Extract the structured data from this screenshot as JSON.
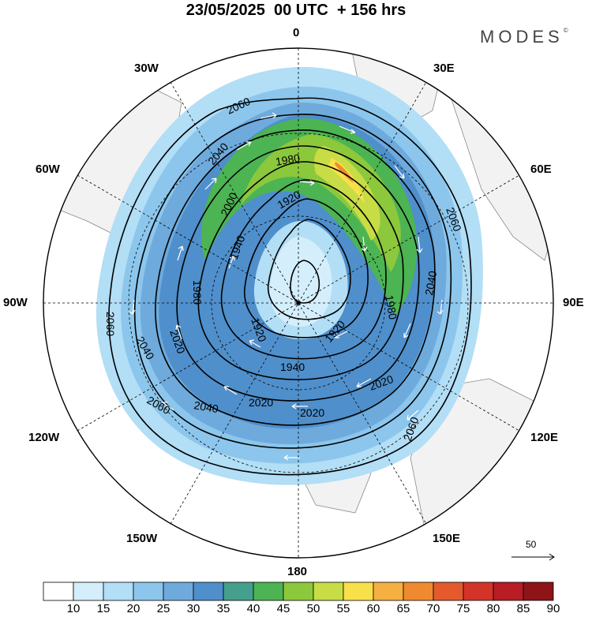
{
  "title": "23/05/2025  00 UTC  + 156 hrs",
  "brand": {
    "name": "MODES",
    "mark": "©"
  },
  "longitude_labels": {
    "top": "0",
    "bottom": "180",
    "left": "90W",
    "right": "90E",
    "upper_left_30": "30W",
    "upper_left_60": "60W",
    "upper_right_30": "30E",
    "upper_right_60": "60E",
    "lower_left_120": "120W",
    "lower_left_150": "150W",
    "lower_right_120": "120E",
    "lower_right_150": "150E"
  },
  "contours": [
    {
      "label": "2060",
      "value": 2060
    },
    {
      "label": "2040",
      "value": 2040
    },
    {
      "label": "2020",
      "value": 2020
    },
    {
      "label": "2000",
      "value": 2000
    },
    {
      "label": "1980",
      "value": 1980
    },
    {
      "label": "1960",
      "value": 1960
    },
    {
      "label": "1940",
      "value": 1940
    },
    {
      "label": "1920",
      "value": 1920
    }
  ],
  "wind_scale": {
    "label": "50"
  },
  "colorbar": {
    "ticks": [
      "10",
      "15",
      "20",
      "25",
      "30",
      "35",
      "40",
      "45",
      "50",
      "55",
      "60",
      "65",
      "70",
      "75",
      "80",
      "85",
      "90"
    ],
    "colors": [
      "#ffffff",
      "#d4eefb",
      "#b2def6",
      "#8cc6ec",
      "#6eaadc",
      "#4f8fcb",
      "#44a08c",
      "#4cb453",
      "#8cc83c",
      "#c8dc46",
      "#f8e04a",
      "#f6b042",
      "#f08a30",
      "#e45a2c",
      "#d43428",
      "#b81c24",
      "#8e1418"
    ]
  },
  "colors": {
    "land": "#f2f2f2",
    "coast": "#8a8a8a",
    "contour": "#000000",
    "vector": "#ffffff"
  }
}
